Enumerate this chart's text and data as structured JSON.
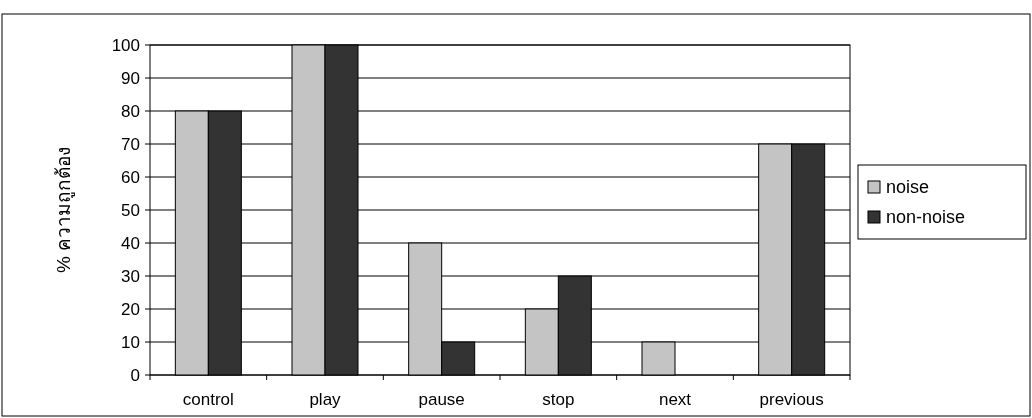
{
  "chart_data": {
    "type": "bar",
    "ylabel": "% ความถูกต้อง",
    "categories": [
      "control",
      "play",
      "pause",
      "stop",
      "next",
      "previous"
    ],
    "series": [
      {
        "name": "noise",
        "color": "#c4c4c4",
        "values": [
          80,
          100,
          40,
          20,
          10,
          70
        ]
      },
      {
        "name": "non-noise",
        "color": "#333333",
        "values": [
          80,
          100,
          10,
          30,
          0,
          70
        ]
      }
    ],
    "ylim": [
      0,
      100
    ],
    "yticks": [
      0,
      10,
      20,
      30,
      40,
      50,
      60,
      70,
      80,
      90,
      100
    ],
    "grid": "y",
    "legend": "right"
  }
}
